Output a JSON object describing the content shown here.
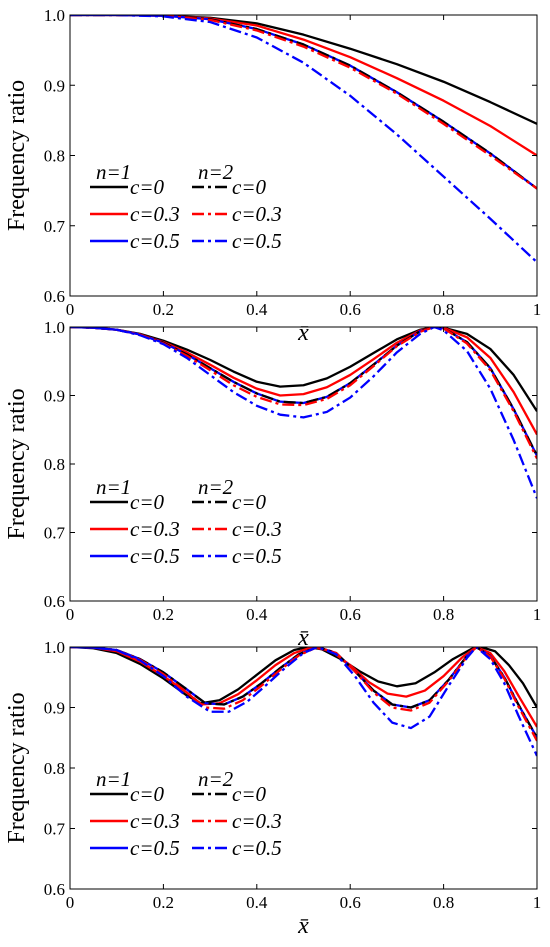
{
  "colors": {
    "black": "#000000",
    "red": "#ff0000",
    "blue": "#0000ff"
  },
  "chart_data": [
    {
      "type": "line",
      "ylabel": "Frequency ratio",
      "xlabel": "x̄",
      "xlim": [
        0,
        1
      ],
      "ylim": [
        0.6,
        1.0
      ],
      "xticks": [
        "0",
        "0.2",
        "0.4",
        "0.6",
        "0.8",
        "1"
      ],
      "yticks": [
        "0.6",
        "0.7",
        "0.8",
        "0.9",
        "1.0"
      ],
      "legend": {
        "placement": "lower-left",
        "n1_label": "n=1",
        "n2_label": "n=2",
        "c_labels": [
          "c=0",
          "c=0.3",
          "c=0.5"
        ]
      },
      "series": [
        {
          "name": "n=1, c=0",
          "color": "#000000",
          "dash": "solid",
          "x": [
            0,
            0.1,
            0.2,
            0.3,
            0.4,
            0.5,
            0.6,
            0.7,
            0.8,
            0.9,
            1.0
          ],
          "y": [
            1.0,
            1.0,
            0.999,
            0.996,
            0.988,
            0.972,
            0.952,
            0.93,
            0.905,
            0.876,
            0.845
          ]
        },
        {
          "name": "n=1, c=0.3",
          "color": "#ff0000",
          "dash": "solid",
          "x": [
            0,
            0.1,
            0.2,
            0.3,
            0.4,
            0.5,
            0.6,
            0.7,
            0.8,
            0.9,
            1.0
          ],
          "y": [
            1.0,
            1.0,
            0.999,
            0.995,
            0.985,
            0.965,
            0.94,
            0.91,
            0.878,
            0.842,
            0.8
          ]
        },
        {
          "name": "n=1, c=0.5",
          "color": "#0000ff",
          "dash": "solid",
          "x": [
            0,
            0.1,
            0.2,
            0.3,
            0.4,
            0.5,
            0.6,
            0.7,
            0.8,
            0.9,
            1.0
          ],
          "y": [
            1.0,
            1.0,
            0.999,
            0.994,
            0.98,
            0.958,
            0.928,
            0.89,
            0.848,
            0.803,
            0.753
          ]
        },
        {
          "name": "n=2, c=0",
          "color": "#000000",
          "dash": "dashdot",
          "x": [
            0,
            0.1,
            0.2,
            0.3,
            0.4,
            0.5,
            0.6,
            0.7,
            0.8,
            0.9,
            1.0
          ],
          "y": [
            1.0,
            1.0,
            0.999,
            0.994,
            0.98,
            0.958,
            0.928,
            0.89,
            0.848,
            0.803,
            0.753
          ]
        },
        {
          "name": "n=2, c=0.3",
          "color": "#ff0000",
          "dash": "dashdot",
          "x": [
            0,
            0.1,
            0.2,
            0.3,
            0.4,
            0.5,
            0.6,
            0.7,
            0.8,
            0.9,
            1.0
          ],
          "y": [
            1.0,
            1.0,
            0.999,
            0.993,
            0.978,
            0.955,
            0.925,
            0.888,
            0.845,
            0.8,
            0.753
          ]
        },
        {
          "name": "n=2, c=0.5",
          "color": "#0000ff",
          "dash": "dashdot",
          "x": [
            0,
            0.1,
            0.2,
            0.3,
            0.4,
            0.5,
            0.6,
            0.7,
            0.8,
            0.9,
            1.0
          ],
          "y": [
            1.0,
            1.0,
            0.998,
            0.99,
            0.968,
            0.932,
            0.885,
            0.83,
            0.77,
            0.71,
            0.648
          ]
        }
      ]
    },
    {
      "type": "line",
      "ylabel": "Frequency ratio",
      "xlabel": "x̄",
      "xlim": [
        0,
        1
      ],
      "ylim": [
        0.6,
        1.0
      ],
      "xticks": [
        "0",
        "0.2",
        "0.4",
        "0.6",
        "0.8",
        "1"
      ],
      "yticks": [
        "0.6",
        "0.7",
        "0.8",
        "0.9",
        "1.0"
      ],
      "legend": {
        "placement": "lower-left",
        "n1_label": "n=1",
        "n2_label": "n=2",
        "c_labels": [
          "c=0",
          "c=0.3",
          "c=0.5"
        ]
      },
      "series": [
        {
          "name": "n=1, c=0",
          "color": "#000000",
          "dash": "solid",
          "x": [
            0,
            0.05,
            0.1,
            0.15,
            0.2,
            0.25,
            0.3,
            0.35,
            0.4,
            0.45,
            0.5,
            0.55,
            0.6,
            0.65,
            0.7,
            0.75,
            0.78,
            0.8,
            0.85,
            0.9,
            0.95,
            1.0
          ],
          "y": [
            1.0,
            0.999,
            0.996,
            0.99,
            0.98,
            0.967,
            0.952,
            0.935,
            0.92,
            0.913,
            0.915,
            0.925,
            0.942,
            0.962,
            0.982,
            0.996,
            1.0,
            0.999,
            0.99,
            0.968,
            0.93,
            0.877
          ]
        },
        {
          "name": "n=1, c=0.3",
          "color": "#ff0000",
          "dash": "solid",
          "x": [
            0,
            0.05,
            0.1,
            0.15,
            0.2,
            0.25,
            0.3,
            0.35,
            0.4,
            0.45,
            0.5,
            0.55,
            0.6,
            0.65,
            0.7,
            0.75,
            0.78,
            0.8,
            0.85,
            0.9,
            0.95,
            1.0
          ],
          "y": [
            1.0,
            0.999,
            0.996,
            0.989,
            0.978,
            0.963,
            0.945,
            0.926,
            0.91,
            0.9,
            0.902,
            0.912,
            0.93,
            0.953,
            0.977,
            0.995,
            1.0,
            0.999,
            0.985,
            0.955,
            0.905,
            0.843
          ]
        },
        {
          "name": "n=1, c=0.5",
          "color": "#0000ff",
          "dash": "solid",
          "x": [
            0,
            0.05,
            0.1,
            0.15,
            0.2,
            0.25,
            0.3,
            0.35,
            0.4,
            0.45,
            0.5,
            0.55,
            0.6,
            0.65,
            0.7,
            0.75,
            0.78,
            0.8,
            0.85,
            0.9,
            0.95,
            1.0
          ],
          "y": [
            1.0,
            0.999,
            0.996,
            0.989,
            0.977,
            0.96,
            0.94,
            0.92,
            0.903,
            0.891,
            0.889,
            0.898,
            0.918,
            0.945,
            0.973,
            0.994,
            1.0,
            0.998,
            0.978,
            0.94,
            0.88,
            0.812
          ]
        },
        {
          "name": "n=2, c=0",
          "color": "#000000",
          "dash": "dashdot",
          "x": [
            0,
            0.05,
            0.1,
            0.15,
            0.2,
            0.25,
            0.3,
            0.35,
            0.4,
            0.45,
            0.5,
            0.55,
            0.6,
            0.65,
            0.7,
            0.75,
            0.78,
            0.8,
            0.85,
            0.9,
            0.95,
            1.0
          ],
          "y": [
            1.0,
            0.999,
            0.996,
            0.989,
            0.977,
            0.96,
            0.94,
            0.92,
            0.903,
            0.891,
            0.889,
            0.898,
            0.918,
            0.945,
            0.973,
            0.994,
            1.0,
            0.998,
            0.978,
            0.94,
            0.88,
            0.812
          ]
        },
        {
          "name": "n=2, c=0.3",
          "color": "#ff0000",
          "dash": "dashdot",
          "x": [
            0,
            0.05,
            0.1,
            0.15,
            0.2,
            0.25,
            0.3,
            0.35,
            0.4,
            0.45,
            0.5,
            0.55,
            0.6,
            0.65,
            0.7,
            0.75,
            0.78,
            0.8,
            0.85,
            0.9,
            0.95,
            1.0
          ],
          "y": [
            1.0,
            0.999,
            0.996,
            0.989,
            0.976,
            0.958,
            0.937,
            0.915,
            0.898,
            0.887,
            0.886,
            0.895,
            0.915,
            0.943,
            0.972,
            0.993,
            1.0,
            0.998,
            0.976,
            0.937,
            0.877,
            0.808
          ]
        },
        {
          "name": "n=2, c=0.5",
          "color": "#0000ff",
          "dash": "dashdot",
          "x": [
            0,
            0.05,
            0.1,
            0.15,
            0.2,
            0.25,
            0.3,
            0.35,
            0.4,
            0.45,
            0.5,
            0.55,
            0.6,
            0.65,
            0.7,
            0.75,
            0.78,
            0.8,
            0.85,
            0.9,
            0.95,
            1.0
          ],
          "y": [
            1.0,
            0.999,
            0.996,
            0.988,
            0.975,
            0.955,
            0.93,
            0.905,
            0.885,
            0.872,
            0.868,
            0.876,
            0.897,
            0.928,
            0.963,
            0.99,
            1.0,
            0.995,
            0.965,
            0.91,
            0.835,
            0.75
          ]
        }
      ]
    },
    {
      "type": "line",
      "ylabel": "Frequency ratio",
      "xlabel": "x̄",
      "xlim": [
        0,
        1
      ],
      "ylim": [
        0.6,
        1.0
      ],
      "xticks": [
        "0",
        "0.2",
        "0.4",
        "0.6",
        "0.8",
        "1"
      ],
      "yticks": [
        "0.6",
        "0.7",
        "0.8",
        "0.9",
        "1.0"
      ],
      "legend": {
        "placement": "lower-left",
        "n1_label": "n=1",
        "n2_label": "n=2",
        "c_labels": [
          "c=0",
          "c=0.3",
          "c=0.5"
        ]
      },
      "series": [
        {
          "name": "n=1, c=0",
          "color": "#000000",
          "dash": "solid",
          "x": [
            0,
            0.05,
            0.1,
            0.15,
            0.2,
            0.25,
            0.28,
            0.32,
            0.36,
            0.4,
            0.44,
            0.48,
            0.51,
            0.54,
            0.58,
            0.62,
            0.66,
            0.7,
            0.74,
            0.78,
            0.82,
            0.86,
            0.88,
            0.91,
            0.94,
            0.97,
            1.0
          ],
          "y": [
            1.0,
            0.998,
            0.99,
            0.972,
            0.948,
            0.92,
            0.907,
            0.912,
            0.93,
            0.954,
            0.978,
            0.995,
            1.0,
            0.996,
            0.98,
            0.96,
            0.943,
            0.935,
            0.94,
            0.958,
            0.98,
            0.997,
            1.0,
            0.993,
            0.97,
            0.94,
            0.9
          ]
        },
        {
          "name": "n=1, c=0.3",
          "color": "#ff0000",
          "dash": "solid",
          "x": [
            0,
            0.05,
            0.1,
            0.15,
            0.2,
            0.25,
            0.28,
            0.32,
            0.36,
            0.4,
            0.44,
            0.48,
            0.52,
            0.56,
            0.6,
            0.64,
            0.68,
            0.72,
            0.76,
            0.8,
            0.84,
            0.87,
            0.9,
            0.93,
            0.96,
            1.0
          ],
          "y": [
            1.0,
            0.999,
            0.993,
            0.976,
            0.952,
            0.925,
            0.905,
            0.907,
            0.922,
            0.945,
            0.97,
            0.99,
            1.0,
            0.993,
            0.97,
            0.942,
            0.923,
            0.918,
            0.928,
            0.952,
            0.983,
            1.0,
            0.99,
            0.96,
            0.92,
            0.868
          ]
        },
        {
          "name": "n=1, c=0.5",
          "color": "#0000ff",
          "dash": "solid",
          "x": [
            0,
            0.05,
            0.1,
            0.15,
            0.2,
            0.25,
            0.29,
            0.33,
            0.37,
            0.41,
            0.45,
            0.49,
            0.53,
            0.57,
            0.61,
            0.65,
            0.69,
            0.73,
            0.77,
            0.81,
            0.85,
            0.87,
            0.9,
            0.93,
            0.96,
            1.0
          ],
          "y": [
            1.0,
            0.999,
            0.995,
            0.98,
            0.958,
            0.93,
            0.907,
            0.905,
            0.918,
            0.94,
            0.965,
            0.988,
            1.0,
            0.99,
            0.96,
            0.928,
            0.905,
            0.9,
            0.912,
            0.945,
            0.985,
            1.0,
            0.985,
            0.95,
            0.905,
            0.85
          ]
        },
        {
          "name": "n=2, c=0",
          "color": "#000000",
          "dash": "dashdot",
          "x": [
            0,
            0.05,
            0.1,
            0.15,
            0.2,
            0.25,
            0.29,
            0.33,
            0.37,
            0.41,
            0.45,
            0.49,
            0.53,
            0.57,
            0.61,
            0.65,
            0.69,
            0.73,
            0.77,
            0.81,
            0.85,
            0.87,
            0.9,
            0.93,
            0.96,
            1.0
          ],
          "y": [
            1.0,
            0.999,
            0.995,
            0.98,
            0.958,
            0.93,
            0.907,
            0.905,
            0.918,
            0.94,
            0.965,
            0.988,
            1.0,
            0.99,
            0.96,
            0.928,
            0.905,
            0.9,
            0.912,
            0.945,
            0.985,
            1.0,
            0.985,
            0.95,
            0.905,
            0.85
          ]
        },
        {
          "name": "n=2, c=0.3",
          "color": "#ff0000",
          "dash": "dashdot",
          "x": [
            0,
            0.05,
            0.1,
            0.15,
            0.2,
            0.25,
            0.29,
            0.33,
            0.37,
            0.41,
            0.45,
            0.49,
            0.53,
            0.57,
            0.61,
            0.65,
            0.69,
            0.73,
            0.77,
            0.81,
            0.85,
            0.87,
            0.9,
            0.93,
            0.96,
            1.0
          ],
          "y": [
            1.0,
            0.999,
            0.995,
            0.979,
            0.955,
            0.925,
            0.9,
            0.898,
            0.912,
            0.936,
            0.962,
            0.986,
            1.0,
            0.99,
            0.96,
            0.925,
            0.9,
            0.895,
            0.908,
            0.943,
            0.984,
            1.0,
            0.984,
            0.948,
            0.902,
            0.845
          ]
        },
        {
          "name": "n=2, c=0.5",
          "color": "#0000ff",
          "dash": "dashdot",
          "x": [
            0,
            0.05,
            0.1,
            0.15,
            0.2,
            0.25,
            0.3,
            0.34,
            0.38,
            0.42,
            0.46,
            0.5,
            0.53,
            0.57,
            0.61,
            0.65,
            0.69,
            0.73,
            0.77,
            0.81,
            0.85,
            0.87,
            0.9,
            0.93,
            0.96,
            1.0
          ],
          "y": [
            1.0,
            0.999,
            0.995,
            0.978,
            0.952,
            0.918,
            0.893,
            0.893,
            0.91,
            0.937,
            0.965,
            0.99,
            1.0,
            0.988,
            0.952,
            0.908,
            0.875,
            0.866,
            0.885,
            0.935,
            0.982,
            1.0,
            0.98,
            0.94,
            0.887,
            0.82
          ]
        }
      ]
    }
  ]
}
